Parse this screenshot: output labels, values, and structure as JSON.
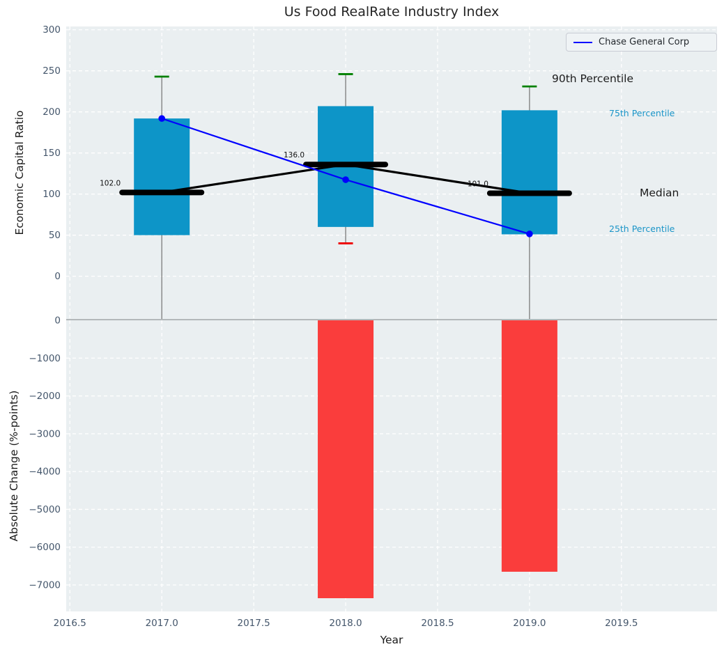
{
  "title": "Us Food RealRate Industry Index",
  "xlabel": "Year",
  "colors": {
    "axes_bg": "#eaeff1",
    "grid": "#ffffff",
    "box": "#0d95c8",
    "bar": "#fa3d3c",
    "series_line": "#0000ff",
    "cap_high": "#008000",
    "cap_low": "#ee0000",
    "whisker": "#7a7a7a",
    "spine": "#9aa0a3",
    "tick_label": "#44566b",
    "accent_text": "#1b95c8",
    "median_line": "#000000",
    "annotation_text": "#111111"
  },
  "xticks": [
    {
      "v": 2016.5,
      "label": "2016.5"
    },
    {
      "v": 2017.0,
      "label": "2017.0"
    },
    {
      "v": 2017.5,
      "label": "2017.5"
    },
    {
      "v": 2018.0,
      "label": "2018.0"
    },
    {
      "v": 2018.5,
      "label": "2018.5"
    },
    {
      "v": 2019.0,
      "label": "2019.0"
    },
    {
      "v": 2019.5,
      "label": "2019.5"
    }
  ],
  "chart_data": [
    {
      "type": "boxplot+line",
      "ylabel": "Economic Capital Ratio",
      "xlim": [
        2016.48,
        2020.02
      ],
      "ylim": [
        -52,
        304
      ],
      "yticks": [
        {
          "v": 300,
          "label": "300"
        },
        {
          "v": 250,
          "label": "250"
        },
        {
          "v": 200,
          "label": "200"
        },
        {
          "v": 150,
          "label": "150"
        },
        {
          "v": 100,
          "label": "100"
        },
        {
          "v": 50,
          "label": "50"
        },
        {
          "v": 0,
          "label": "0"
        }
      ],
      "boxes": [
        {
          "year": 2017,
          "p90": 243,
          "p75": 192,
          "median": 102,
          "p25": 50,
          "p10": null,
          "median_label": "102.0"
        },
        {
          "year": 2018,
          "p90": 246,
          "p75": 207,
          "median": 136,
          "p25": 60,
          "p10": 40,
          "median_label": "136.0"
        },
        {
          "year": 2019,
          "p90": 231,
          "p75": 202,
          "median": 101,
          "p25": 51,
          "p10": null,
          "median_label": "101.0"
        }
      ],
      "series": [
        {
          "name": "Chase General Corp",
          "color": "#0000ff",
          "x": [
            2017,
            2018,
            2019
          ],
          "values": [
            192,
            117.5,
            51.5
          ]
        }
      ],
      "side_labels": [
        {
          "text": "90th Percentile",
          "style": "dark"
        },
        {
          "text": "75th Percentile",
          "style": "accent"
        },
        {
          "text": "Median",
          "style": "dark"
        },
        {
          "text": "25th Percentile",
          "style": "accent"
        }
      ]
    },
    {
      "type": "bar",
      "ylabel": "Absolute Change (%-points)",
      "xlim": [
        2016.48,
        2020.02
      ],
      "ylim": [
        -7700,
        0
      ],
      "x": [
        2018,
        2019
      ],
      "values": [
        -7350,
        -6650
      ],
      "yticks": [
        {
          "v": 0,
          "label": "0"
        },
        {
          "v": -1000,
          "label": "−1000"
        },
        {
          "v": -2000,
          "label": "−2000"
        },
        {
          "v": -3000,
          "label": "−3000"
        },
        {
          "v": -4000,
          "label": "−4000"
        },
        {
          "v": -5000,
          "label": "−5000"
        },
        {
          "v": -6000,
          "label": "−6000"
        },
        {
          "v": -7000,
          "label": "−7000"
        }
      ]
    }
  ]
}
